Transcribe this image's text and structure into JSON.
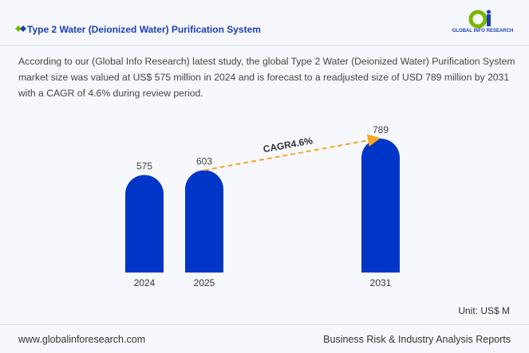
{
  "header": {
    "title": "Type 2 Water (Deionized Water) Purification System",
    "logo_text": "GLOBAL INFO RESEARCH"
  },
  "description": "According to our (Global Info Research) latest study, the global Type 2 Water (Deionized Water) Purification System market size was valued at US$ 575 million in 2024 and is forecast to a readjusted size of USD 789 million by 2031 with a CAGR of 4.6% during review period.",
  "unit": "Unit: US$ M",
  "footer": {
    "website": "www.globalinforesearch.com",
    "tagline": "Business Risk & Industry Analysis Reports"
  },
  "colors": {
    "bar": "#0036c8",
    "arrow": "#f5a623",
    "title": "#1a3fb5"
  },
  "chart_data": {
    "type": "bar",
    "categories": [
      "2024",
      "2025",
      "2031"
    ],
    "values": [
      575,
      603,
      789
    ],
    "annotation": "CAGR4.6%",
    "ylabel": "",
    "xlabel": "",
    "ylim": [
      0,
      789
    ],
    "grid": false
  }
}
